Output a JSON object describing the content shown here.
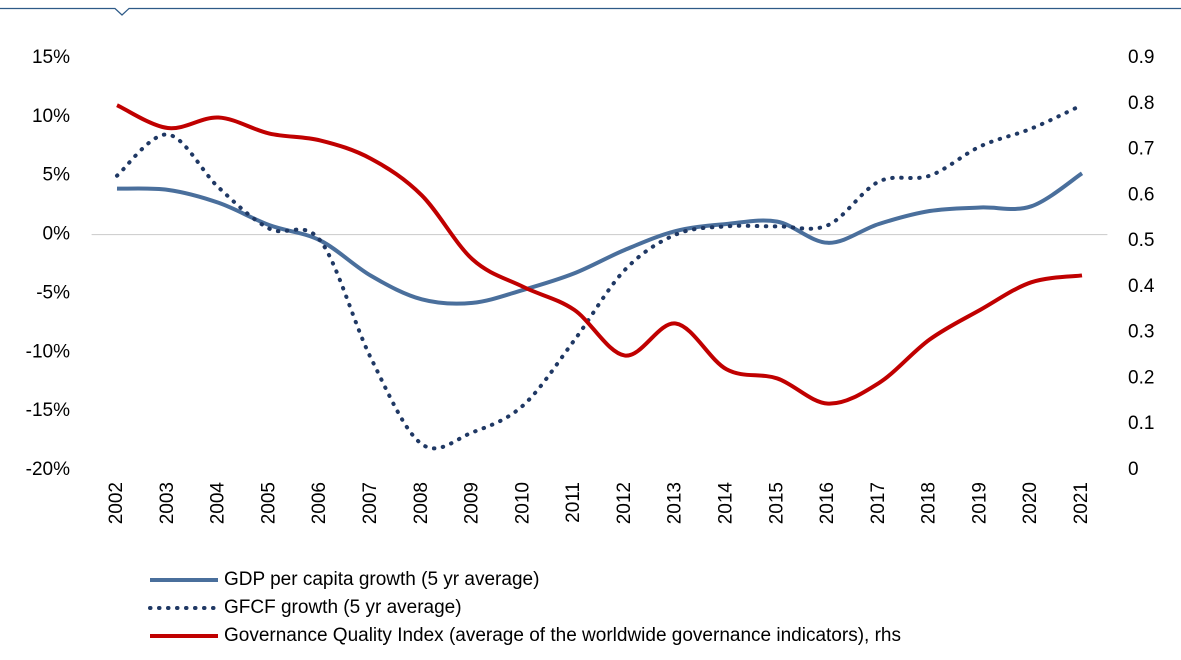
{
  "chart_data": {
    "type": "line",
    "categories": [
      "2002",
      "2003",
      "2004",
      "2005",
      "2006",
      "2007",
      "2008",
      "2009",
      "2010",
      "2011",
      "2012",
      "2013",
      "2014",
      "2015",
      "2016",
      "2017",
      "2018",
      "2019",
      "2020",
      "2021"
    ],
    "series": [
      {
        "name": "GDP per capita growth (5 yr average)",
        "color": "#4a6f9c",
        "style": "solid",
        "values": [
          3.9,
          3.8,
          2.7,
          0.8,
          -0.5,
          -3.5,
          -5.5,
          -5.8,
          -4.7,
          -3.3,
          -1.3,
          0.3,
          0.9,
          1.1,
          -0.7,
          0.9,
          2.0,
          2.3,
          2.4,
          5.2
        ]
      },
      {
        "name": "GFCF growth (5 yr average)",
        "color": "#1f3864",
        "style": "dotted",
        "values": [
          5.0,
          8.5,
          4.0,
          0.5,
          -0.5,
          -10.5,
          -17.8,
          -16.8,
          -14.5,
          -9.0,
          -3.0,
          0.0,
          0.7,
          0.7,
          0.8,
          4.5,
          5.0,
          7.5,
          9.0,
          11.0
        ]
      },
      {
        "name": "Governance Quality Index (average of the worldwide governance indicators), rhs",
        "color": "#c00000",
        "style": "solid",
        "axis": "y2",
        "values": [
          0.797,
          0.747,
          0.77,
          0.735,
          0.72,
          0.68,
          0.6,
          0.46,
          0.4,
          0.35,
          0.25,
          0.32,
          0.22,
          0.2,
          0.145,
          0.19,
          0.285,
          0.35,
          0.41,
          0.425
        ]
      }
    ],
    "ylim": [
      -20,
      15
    ],
    "yticks": [
      {
        "value": -20,
        "label": "-20%"
      },
      {
        "value": -15,
        "label": "-15%"
      },
      {
        "value": -10,
        "label": "-10%"
      },
      {
        "value": -5,
        "label": "-5%"
      },
      {
        "value": 0,
        "label": "0%"
      },
      {
        "value": 5,
        "label": "5%"
      },
      {
        "value": 10,
        "label": "10%"
      },
      {
        "value": 15,
        "label": "15%"
      }
    ],
    "y2lim": [
      0,
      0.9
    ],
    "y2ticks": [
      0,
      0.1,
      0.2,
      0.3,
      0.4,
      0.5,
      0.6,
      0.7,
      0.8,
      0.9
    ],
    "grid": false
  }
}
